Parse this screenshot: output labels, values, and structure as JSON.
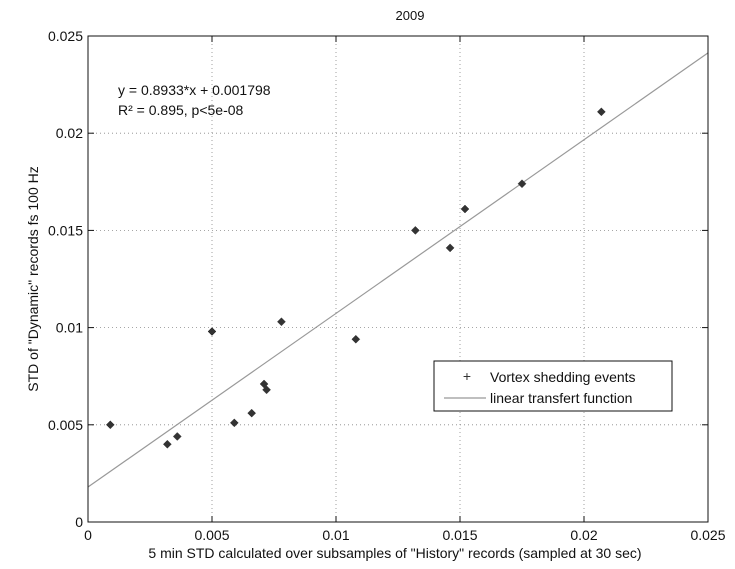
{
  "chart_data": {
    "type": "scatter",
    "title": "2009",
    "xlabel": "5 min STD calculated over subsamples of \"History\" records (sampled at 30 sec)",
    "ylabel": "STD of \"Dynamic\" records fs 100 Hz",
    "xlim": [
      0,
      0.025
    ],
    "ylim": [
      0,
      0.025
    ],
    "xticks": [
      0,
      0.005,
      0.01,
      0.015,
      0.02,
      0.025
    ],
    "yticks": [
      0,
      0.005,
      0.01,
      0.015,
      0.02,
      0.025
    ],
    "xtick_labels": [
      "0",
      "0.005",
      "0.01",
      "0.015",
      "0.02",
      "0.025"
    ],
    "ytick_labels": [
      "0",
      "0.005",
      "0.01",
      "0.015",
      "0.02",
      "0.025"
    ],
    "grid": true,
    "legend_position": "middle-right",
    "annotations": [
      "y = 0.8933*x + 0.001798",
      "R² = 0.895, p<5e-08"
    ],
    "series": [
      {
        "name": "Vortex shedding events",
        "marker": "diamond",
        "color": "#333333",
        "points": [
          [
            0.0009,
            0.005
          ],
          [
            0.0032,
            0.004
          ],
          [
            0.0036,
            0.0044
          ],
          [
            0.005,
            0.0098
          ],
          [
            0.0059,
            0.0051
          ],
          [
            0.0066,
            0.0056
          ],
          [
            0.0071,
            0.0071
          ],
          [
            0.0072,
            0.0068
          ],
          [
            0.0078,
            0.0103
          ],
          [
            0.0108,
            0.0094
          ],
          [
            0.0132,
            0.015
          ],
          [
            0.0146,
            0.0141
          ],
          [
            0.0152,
            0.0161
          ],
          [
            0.0175,
            0.0174
          ],
          [
            0.0207,
            0.0211
          ]
        ]
      },
      {
        "name": "linear transfert function",
        "kind": "line",
        "color": "#999999",
        "slope": 0.8933,
        "intercept": 0.001798
      }
    ]
  }
}
